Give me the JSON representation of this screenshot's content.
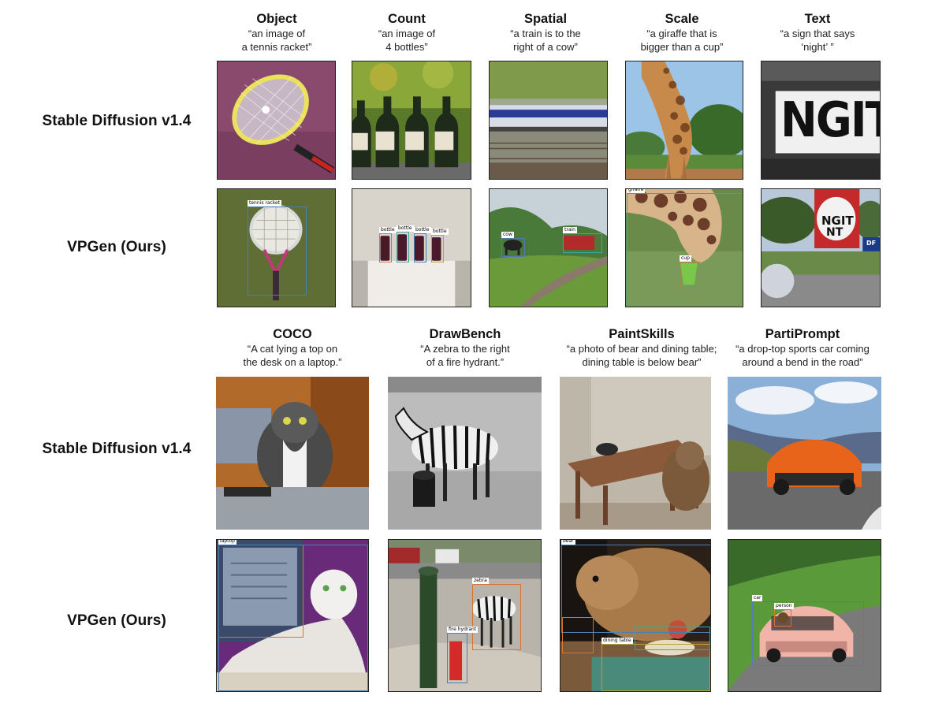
{
  "row_labels": {
    "top_sd": "Stable Diffusion v1.4",
    "top_vpgen": "VPGen (Ours)",
    "bottom_sd": "Stable Diffusion v1.4",
    "bottom_vpgen": "VPGen (Ours)"
  },
  "top_columns": [
    {
      "title": "Object",
      "prompt_l1": "“an image of",
      "prompt_l2": "a tennis racket”"
    },
    {
      "title": "Count",
      "prompt_l1": "“an image of",
      "prompt_l2": "4 bottles”"
    },
    {
      "title": "Spatial",
      "prompt_l1": "“a train is to the",
      "prompt_l2": "right of a cow”"
    },
    {
      "title": "Scale",
      "prompt_l1": "“a giraffe that is",
      "prompt_l2": "bigger than a cup”"
    },
    {
      "title": "Text",
      "prompt_l1": "“a sign that says",
      "prompt_l2": "‘night’ ”"
    }
  ],
  "bottom_columns": [
    {
      "title": "COCO",
      "prompt_l1": "“A cat lying a top on",
      "prompt_l2": "the desk on a laptop.”"
    },
    {
      "title": "DrawBench",
      "prompt_l1": "“A zebra to the right",
      "prompt_l2": "of a fire hydrant.”"
    },
    {
      "title": "PaintSkills",
      "prompt_l1": "“a photo of bear and dining table;",
      "prompt_l2": "dining table is below bear”"
    },
    {
      "title": "PartiPrompt",
      "prompt_l1": "“a drop-top sports car coming",
      "prompt_l2": "around a bend in the road”"
    }
  ],
  "bbox_labels": {
    "tennis": "tennis racket",
    "bottle": "bottle",
    "cow": "cow",
    "train": "train",
    "giraffe": "giraffe",
    "cup": "cup",
    "laptop": "laptop",
    "zebra": "zebra",
    "hydrant": "fire hydrant",
    "bear": "bear",
    "dining_table": "dining table",
    "car": "car",
    "person": "person"
  },
  "image_text": {
    "sd_sign": "NGIT",
    "vp_sign_l1": "NGIT",
    "vp_sign_l2": "NT",
    "vp_sign_small": "DF"
  },
  "colors": {
    "bbox_blue": "#4a7fb0",
    "bbox_orange": "#d9742e",
    "bbox_teal": "#3aa6a0",
    "bbox_olive": "#b5a13a"
  }
}
